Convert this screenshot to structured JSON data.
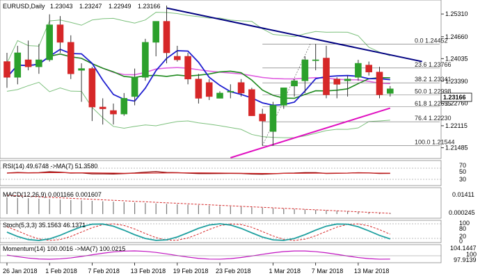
{
  "chart_data": {
    "type": "candlestick",
    "title": "EURUSD,Daily",
    "ohlc_values": [
      "1.23043",
      "1.23247",
      "1.22949",
      "1.23166"
    ],
    "current_price_label": "1.23166",
    "price_range": [
      1.212,
      1.2565
    ],
    "price_ticks": [
      "1.25310",
      "1.24660",
      "1.24035",
      "1.23390",
      "1.22760",
      "1.22115",
      "1.21485"
    ],
    "date_labels": [
      "26 Jan 2018",
      "1 Feb 2018",
      "7 Feb 2018",
      "13 Feb 2018",
      "19 Feb 2018",
      "23 Feb 2018",
      "1 Mar 2018",
      "7 Mar 2018",
      "13 Mar 2018"
    ],
    "date_label_indices": [
      0,
      4,
      8,
      12,
      16,
      20,
      25,
      29,
      33
    ],
    "candles": [
      {
        "o": 1.2395,
        "h": 1.242,
        "l": 1.232,
        "c": 1.235
      },
      {
        "o": 1.235,
        "h": 1.244,
        "l": 1.233,
        "c": 1.242
      },
      {
        "o": 1.24,
        "h": 1.2455,
        "l": 1.237,
        "c": 1.238
      },
      {
        "o": 1.238,
        "h": 1.2445,
        "l": 1.236,
        "c": 1.24
      },
      {
        "o": 1.24,
        "h": 1.253,
        "l": 1.2395,
        "c": 1.25
      },
      {
        "o": 1.25,
        "h": 1.2525,
        "l": 1.242,
        "c": 1.245
      },
      {
        "o": 1.245,
        "h": 1.247,
        "l": 1.2345,
        "c": 1.236
      },
      {
        "o": 1.237,
        "h": 1.239,
        "l": 1.228,
        "c": 1.2375
      },
      {
        "o": 1.2375,
        "h": 1.238,
        "l": 1.2225,
        "c": 1.2265
      },
      {
        "o": 1.2265,
        "h": 1.229,
        "l": 1.2215,
        "c": 1.226
      },
      {
        "o": 1.2255,
        "h": 1.2275,
        "l": 1.2215,
        "c": 1.2245
      },
      {
        "o": 1.2245,
        "h": 1.2305,
        "l": 1.224,
        "c": 1.229
      },
      {
        "o": 1.2295,
        "h": 1.2375,
        "l": 1.227,
        "c": 1.235
      },
      {
        "o": 1.235,
        "h": 1.246,
        "l": 1.234,
        "c": 1.245
      },
      {
        "o": 1.245,
        "h": 1.251,
        "l": 1.241,
        "c": 1.251
      },
      {
        "o": 1.251,
        "h": 1.2555,
        "l": 1.239,
        "c": 1.242
      },
      {
        "o": 1.241,
        "h": 1.244,
        "l": 1.2395,
        "c": 1.24
      },
      {
        "o": 1.241,
        "h": 1.242,
        "l": 1.233,
        "c": 1.2345
      },
      {
        "o": 1.2345,
        "h": 1.236,
        "l": 1.2275,
        "c": 1.229
      },
      {
        "o": 1.2335,
        "h": 1.2345,
        "l": 1.2285,
        "c": 1.2295
      },
      {
        "o": 1.229,
        "h": 1.231,
        "l": 1.229,
        "c": 1.2305
      },
      {
        "o": 1.231,
        "h": 1.233,
        "l": 1.229,
        "c": 1.231
      },
      {
        "o": 1.2335,
        "h": 1.2345,
        "l": 1.2295,
        "c": 1.2305
      },
      {
        "o": 1.2315,
        "h": 1.232,
        "l": 1.224,
        "c": 1.224
      },
      {
        "o": 1.2245,
        "h": 1.226,
        "l": 1.2155,
        "c": 1.2225
      },
      {
        "o": 1.2195,
        "h": 1.228,
        "l": 1.2155,
        "c": 1.227
      },
      {
        "o": 1.227,
        "h": 1.232,
        "l": 1.226,
        "c": 1.232
      },
      {
        "o": 1.2325,
        "h": 1.2345,
        "l": 1.2295,
        "c": 1.234
      },
      {
        "o": 1.234,
        "h": 1.241,
        "l": 1.2305,
        "c": 1.24
      },
      {
        "o": 1.24,
        "h": 1.2445,
        "l": 1.237,
        "c": 1.24
      },
      {
        "o": 1.2405,
        "h": 1.244,
        "l": 1.229,
        "c": 1.23
      },
      {
        "o": 1.2345,
        "h": 1.235,
        "l": 1.229,
        "c": 1.233
      },
      {
        "o": 1.234,
        "h": 1.2355,
        "l": 1.2295,
        "c": 1.2345
      },
      {
        "o": 1.235,
        "h": 1.24,
        "l": 1.234,
        "c": 1.239
      },
      {
        "o": 1.2385,
        "h": 1.2395,
        "l": 1.2355,
        "c": 1.2365
      },
      {
        "o": 1.2365,
        "h": 1.238,
        "l": 1.229,
        "c": 1.23
      },
      {
        "o": 1.2304,
        "h": 1.2325,
        "l": 1.2295,
        "c": 1.2317
      }
    ],
    "fib_levels": [
      {
        "label": "0.0  1.24452",
        "price": 1.24452
      },
      {
        "label": "23.6  1.23766",
        "price": 1.23766
      },
      {
        "label": "38.2  1.23341",
        "price": 1.23341
      },
      {
        "label": "50.0  1.22998",
        "price": 1.22998
      },
      {
        "label": "61.8  1.22655",
        "price": 1.22655
      },
      {
        "label": "76.4  1.22230",
        "price": 1.2223
      },
      {
        "label": "100.0  1.21544",
        "price": 1.21544
      }
    ],
    "trendlines": [
      {
        "color": "#000080",
        "from": [
          15,
          1.2548
        ],
        "to": [
          39,
          1.2395
        ]
      },
      {
        "color": "#e010c0",
        "from": [
          21,
          1.212
        ],
        "to": [
          36,
          1.2262
        ]
      }
    ],
    "colors": {
      "bull": "#2ca02c",
      "bear": "#d62728",
      "ma_fast": "#1f1fd0",
      "ma_mid": "#1e8a1e",
      "ma_slow": "#e060e0",
      "bands": "#7cc07c",
      "trend_down": "#000080",
      "trend_up": "#e010c0",
      "rsi": "#8b0000",
      "rsi_ma": "#d62728",
      "stoch_main": "#20a0a0",
      "stoch_signal": "#d62728",
      "momentum": "#c010c0"
    },
    "indicators": [
      {
        "label": "RSI(14) 49.6748  ->MA(7) 51.3580",
        "scale": [
          "70",
          "50",
          "30"
        ]
      },
      {
        "label": "MACD(12,26,9) 0.001166 0.001607",
        "scale": [
          "0.01411",
          "0.000245"
        ]
      },
      {
        "label": "Stoch(5,3,3) 35.1563 46.1371",
        "scale": [
          "100",
          "80",
          "20",
          "0"
        ]
      },
      {
        "label": "Momentum(14) 100.0016  ->MA(7) 100.0215",
        "scale": [
          "104.1447",
          "100",
          "97.9139"
        ]
      }
    ]
  }
}
